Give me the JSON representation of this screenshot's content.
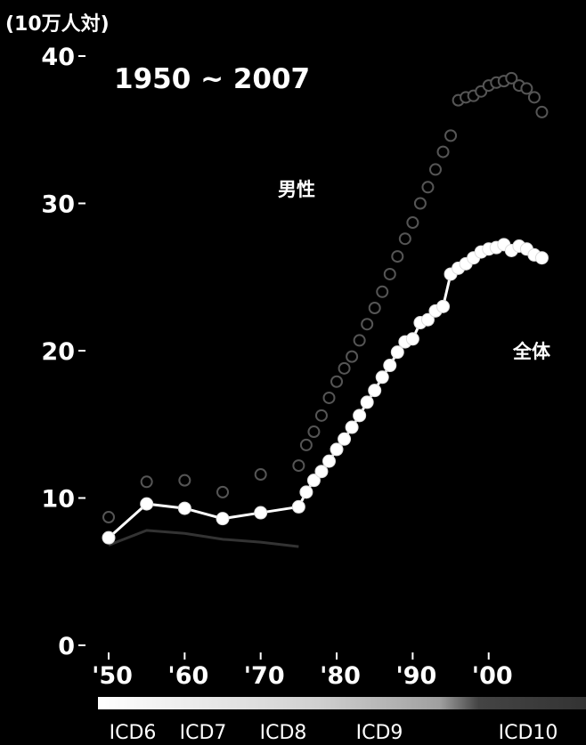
{
  "chart_data": {
    "type": "line",
    "title": "1950 ~ 2007",
    "ylabel": "(10万人対)",
    "xlabel": "",
    "ylim": [
      0,
      40
    ],
    "xlim": [
      1950,
      2008
    ],
    "y_ticks": [
      {
        "value": 0,
        "label": "0"
      },
      {
        "value": 10,
        "label": "10"
      },
      {
        "value": 20,
        "label": "20"
      },
      {
        "value": 30,
        "label": "30"
      },
      {
        "value": 40,
        "label": "40"
      }
    ],
    "x_ticks": [
      {
        "value": 1950,
        "label": "'50"
      },
      {
        "value": 1960,
        "label": "'60"
      },
      {
        "value": 1970,
        "label": "'70"
      },
      {
        "value": 1980,
        "label": "'80"
      },
      {
        "value": 1990,
        "label": "'90"
      },
      {
        "value": 2000,
        "label": "'00"
      }
    ],
    "grid": false,
    "series": [
      {
        "name": "男性",
        "color": "#555555",
        "points": [
          [
            1950,
            8.7
          ],
          [
            1955,
            11.1
          ],
          [
            1960,
            11.2
          ],
          [
            1965,
            10.4
          ],
          [
            1970,
            11.6
          ],
          [
            1975,
            12.2
          ],
          [
            1976,
            13.6
          ],
          [
            1977,
            14.5
          ],
          [
            1978,
            15.6
          ],
          [
            1979,
            16.8
          ],
          [
            1980,
            17.9
          ],
          [
            1981,
            18.8
          ],
          [
            1982,
            19.6
          ],
          [
            1983,
            20.7
          ],
          [
            1984,
            21.8
          ],
          [
            1985,
            22.9
          ],
          [
            1986,
            24.0
          ],
          [
            1987,
            25.2
          ],
          [
            1988,
            26.4
          ],
          [
            1989,
            27.6
          ],
          [
            1990,
            28.7
          ],
          [
            1991,
            30.0
          ],
          [
            1992,
            31.1
          ],
          [
            1993,
            32.3
          ],
          [
            1994,
            33.5
          ],
          [
            1995,
            34.6
          ],
          [
            1996,
            37.0
          ],
          [
            1997,
            37.2
          ],
          [
            1998,
            37.3
          ],
          [
            1999,
            37.6
          ],
          [
            2000,
            38.0
          ],
          [
            2001,
            38.2
          ],
          [
            2002,
            38.3
          ],
          [
            2003,
            38.5
          ],
          [
            2004,
            38.0
          ],
          [
            2005,
            37.8
          ],
          [
            2006,
            37.2
          ],
          [
            2007,
            36.2
          ]
        ]
      },
      {
        "name": "全体",
        "color": "#ffffff",
        "points": [
          [
            1950,
            7.3
          ],
          [
            1955,
            9.6
          ],
          [
            1960,
            9.3
          ],
          [
            1965,
            8.6
          ],
          [
            1970,
            9.0
          ],
          [
            1975,
            9.4
          ],
          [
            1976,
            10.4
          ],
          [
            1977,
            11.2
          ],
          [
            1978,
            11.8
          ],
          [
            1979,
            12.5
          ],
          [
            1980,
            13.3
          ],
          [
            1981,
            14.0
          ],
          [
            1982,
            14.8
          ],
          [
            1983,
            15.6
          ],
          [
            1984,
            16.5
          ],
          [
            1985,
            17.3
          ],
          [
            1986,
            18.2
          ],
          [
            1987,
            19.0
          ],
          [
            1988,
            19.9
          ],
          [
            1989,
            20.6
          ],
          [
            1990,
            20.8
          ],
          [
            1991,
            21.9
          ],
          [
            1992,
            22.1
          ],
          [
            1993,
            22.7
          ],
          [
            1994,
            23.0
          ],
          [
            1995,
            25.2
          ],
          [
            1996,
            25.6
          ],
          [
            1997,
            25.9
          ],
          [
            1998,
            26.3
          ],
          [
            1999,
            26.7
          ],
          [
            2000,
            26.9
          ],
          [
            2001,
            27.0
          ],
          [
            2002,
            27.2
          ],
          [
            2003,
            26.8
          ],
          [
            2004,
            27.1
          ],
          [
            2005,
            26.9
          ],
          [
            2006,
            26.5
          ],
          [
            2007,
            26.3
          ]
        ]
      },
      {
        "name": "",
        "color": "#333333",
        "points": [
          [
            1950,
            6.8
          ],
          [
            1955,
            7.8
          ],
          [
            1960,
            7.6
          ],
          [
            1965,
            7.2
          ],
          [
            1970,
            7.0
          ],
          [
            1975,
            6.7
          ]
        ]
      }
    ],
    "icd_bands": [
      {
        "label": "ICD6",
        "color": "#ffffff"
      },
      {
        "label": "ICD7",
        "color": "#e8e8e8"
      },
      {
        "label": "ICD8",
        "color": "#d4d4d4"
      },
      {
        "label": "ICD9",
        "color": "#b8b8b8"
      },
      {
        "label": "ICD10",
        "color": "#777777"
      }
    ]
  }
}
